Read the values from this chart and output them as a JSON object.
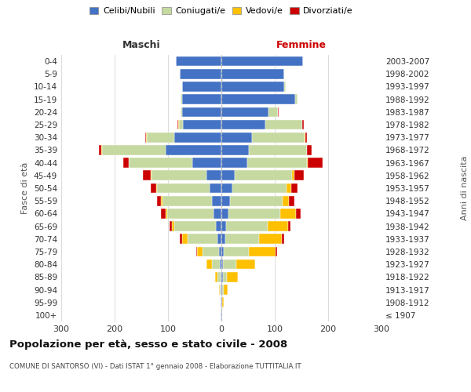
{
  "age_groups": [
    "100+",
    "95-99",
    "90-94",
    "85-89",
    "80-84",
    "75-79",
    "70-74",
    "65-69",
    "60-64",
    "55-59",
    "50-54",
    "45-49",
    "40-44",
    "35-39",
    "30-34",
    "25-29",
    "20-24",
    "15-19",
    "10-14",
    "5-9",
    "0-4"
  ],
  "birth_years": [
    "≤ 1907",
    "1908-1912",
    "1913-1917",
    "1918-1922",
    "1923-1927",
    "1928-1932",
    "1933-1937",
    "1938-1942",
    "1943-1947",
    "1948-1952",
    "1953-1957",
    "1958-1962",
    "1963-1967",
    "1968-1972",
    "1973-1977",
    "1978-1982",
    "1983-1987",
    "1988-1992",
    "1993-1997",
    "1998-2002",
    "2003-2007"
  ],
  "colors": {
    "celibi": "#4472c4",
    "coniugati": "#c5d9a0",
    "vedovi": "#ffc000",
    "divorziati": "#cc0000"
  },
  "maschi": {
    "celibi": [
      1,
      1,
      1,
      2,
      3,
      5,
      8,
      10,
      14,
      18,
      22,
      28,
      55,
      105,
      88,
      72,
      73,
      74,
      73,
      78,
      85
    ],
    "coniugati": [
      0,
      0,
      2,
      5,
      15,
      30,
      55,
      78,
      88,
      93,
      98,
      103,
      118,
      118,
      52,
      8,
      4,
      2,
      0,
      0,
      0
    ],
    "vedovi": [
      0,
      1,
      2,
      5,
      10,
      10,
      10,
      4,
      3,
      2,
      2,
      1,
      1,
      2,
      1,
      1,
      0,
      0,
      0,
      0,
      0
    ],
    "divorziati": [
      0,
      0,
      0,
      0,
      0,
      2,
      5,
      5,
      8,
      8,
      10,
      15,
      10,
      5,
      2,
      1,
      0,
      0,
      0,
      0,
      0
    ]
  },
  "femmine": {
    "celibi": [
      1,
      1,
      1,
      3,
      3,
      4,
      7,
      9,
      13,
      16,
      20,
      25,
      48,
      52,
      58,
      83,
      88,
      138,
      118,
      118,
      153
    ],
    "coniugati": [
      0,
      1,
      3,
      8,
      25,
      48,
      63,
      78,
      98,
      98,
      102,
      108,
      112,
      108,
      98,
      68,
      18,
      4,
      2,
      0,
      0
    ],
    "vedovi": [
      1,
      3,
      8,
      20,
      35,
      50,
      43,
      38,
      28,
      13,
      9,
      4,
      2,
      1,
      1,
      1,
      0,
      0,
      0,
      0,
      0
    ],
    "divorziati": [
      0,
      0,
      0,
      0,
      0,
      2,
      5,
      5,
      10,
      10,
      12,
      18,
      28,
      8,
      4,
      2,
      1,
      0,
      0,
      0,
      0
    ]
  },
  "title": "Popolazione per età, sesso e stato civile - 2008",
  "subtitle": "COMUNE DI SANTORSO (VI) - Dati ISTAT 1° gennaio 2008 - Elaborazione TUTTITALIA.IT",
  "label_maschi": "Maschi",
  "label_femmine": "Femmine",
  "ylabel_left": "Fasce di età",
  "ylabel_right": "Anni di nascita",
  "xlim": 300,
  "legend_labels": [
    "Celibi/Nubili",
    "Coniugati/e",
    "Vedovi/e",
    "Divorziati/e"
  ],
  "xticks": [
    -300,
    -200,
    -100,
    0,
    100,
    200,
    300
  ]
}
